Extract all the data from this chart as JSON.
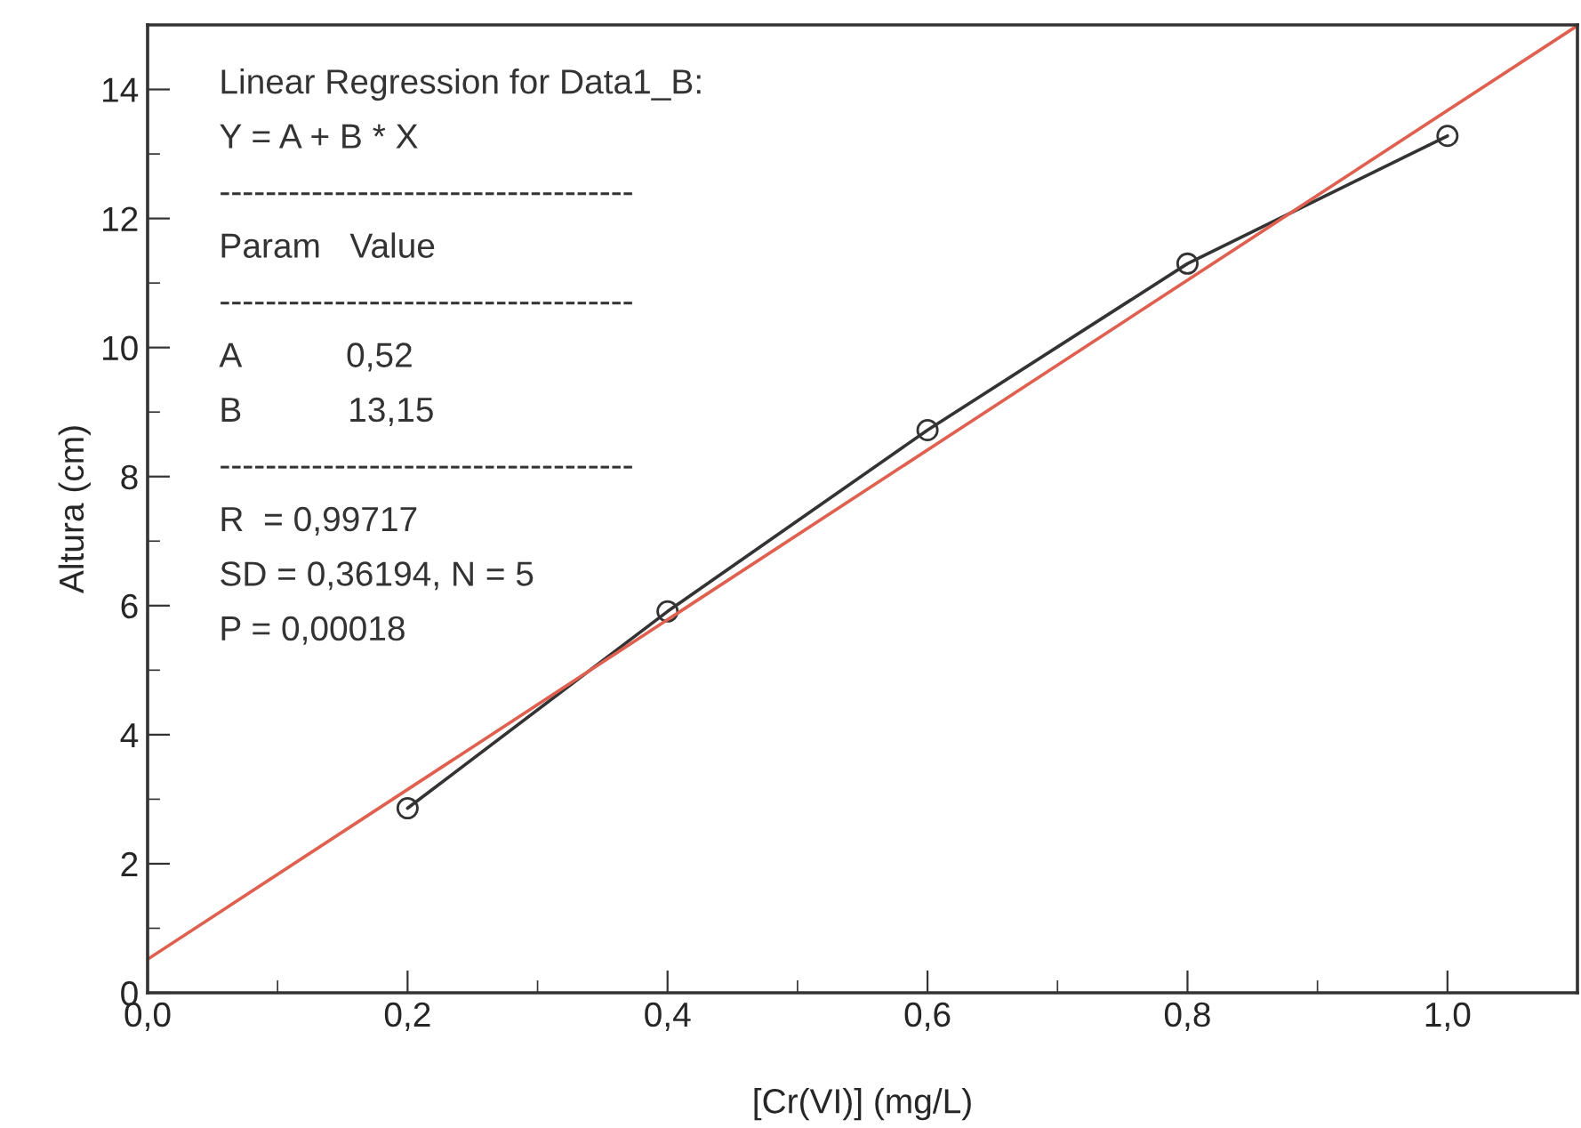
{
  "chart_data": {
    "type": "line",
    "xlabel": "[Cr(VI)] (mg/L)",
    "ylabel": "Altura (cm)",
    "x": [
      0.2,
      0.4,
      0.6,
      0.8,
      1.0
    ],
    "series": [
      {
        "color": "#333333",
        "values": [
          2.86,
          5.91,
          8.72,
          11.3,
          13.28
        ],
        "marker": "circle"
      },
      {
        "type": "line",
        "color": "#e06050",
        "x": [
          0,
          1.1
        ],
        "values": [
          0.52,
          14.99
        ],
        "marker": "none"
      }
    ],
    "xlim": [
      0,
      1.1
    ],
    "xticks": [
      {
        "value": 0,
        "label": "0,0"
      },
      {
        "value": 0.2,
        "label": "0,2"
      },
      {
        "value": 0.4,
        "label": "0,4"
      },
      {
        "value": 0.6,
        "label": "0,6"
      },
      {
        "value": 0.8,
        "label": "0,8"
      },
      {
        "value": 1.0,
        "label": "1,0"
      }
    ],
    "ylim": [
      0,
      15
    ],
    "yticks": [
      0,
      2,
      4,
      6,
      8,
      10,
      12,
      14
    ],
    "grid": false,
    "legend": false,
    "annotations": [
      "Linear Regression for Data1_B:",
      "Y = A + B * X",
      "------------------------------------",
      "Param   Value",
      "------------------------------------",
      "A           0,52",
      "B           13,15",
      "------------------------------------",
      "R  = 0,99717",
      "SD = 0,36194, N = 5",
      "P = 0,00018"
    ]
  }
}
